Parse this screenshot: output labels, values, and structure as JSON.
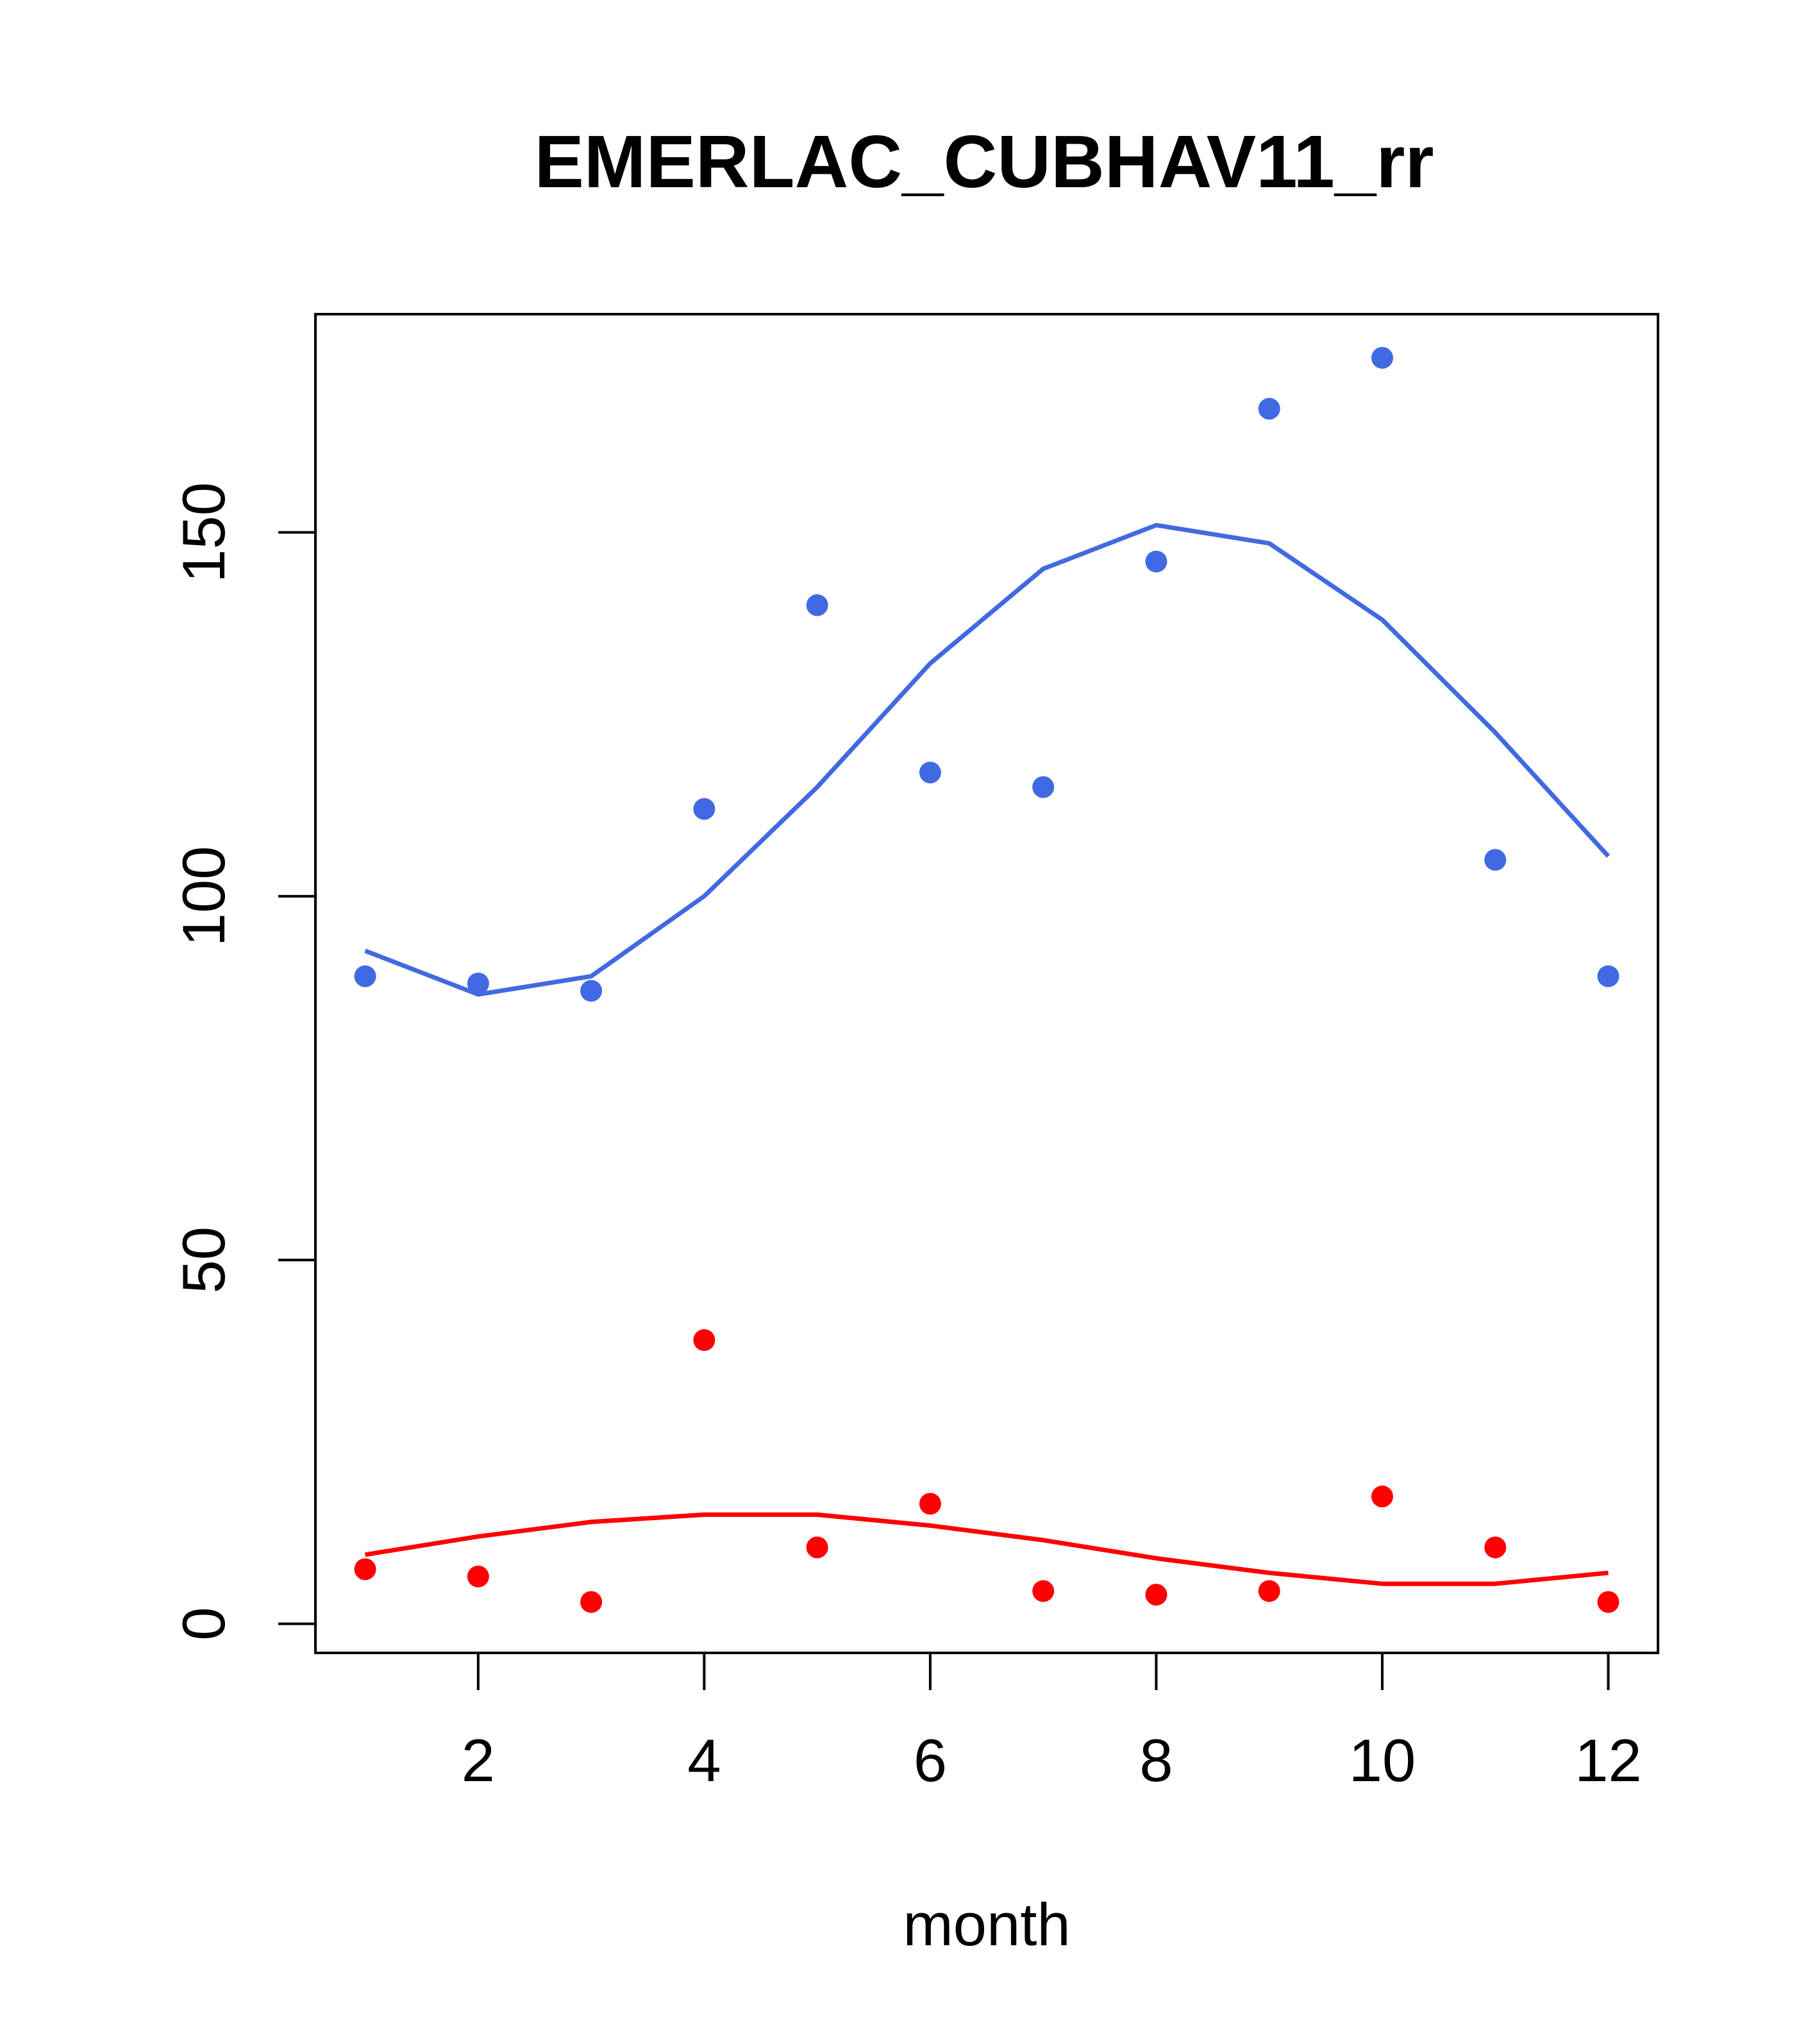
{
  "chart_data": {
    "type": "scatter",
    "title": "EMERLAC_CUBHAV11_rr",
    "xlabel": "month",
    "ylabel": "",
    "xlim": [
      0.56,
      12.44
    ],
    "ylim": [
      -4,
      180
    ],
    "xticks": [
      2,
      4,
      6,
      8,
      10,
      12
    ],
    "yticks": [
      0,
      50,
      100,
      150
    ],
    "grid": false,
    "legend": "none",
    "x": [
      1,
      2,
      3,
      4,
      5,
      6,
      7,
      8,
      9,
      10,
      11,
      12
    ],
    "series": [
      {
        "color": "#4169E1",
        "points": [
          89,
          88,
          87,
          112,
          140,
          117,
          115,
          146,
          167,
          174,
          105,
          89
        ],
        "line": [
          92.5,
          86.5,
          89,
          100,
          115,
          132,
          145,
          151,
          148.5,
          138,
          122.5,
          105.5
        ]
      },
      {
        "color": "#FF0000",
        "points": [
          7.5,
          6.5,
          3,
          39,
          10.5,
          16.5,
          4.5,
          4,
          4.5,
          17.5,
          10.5,
          3
        ],
        "line": [
          9.5,
          12,
          14,
          15,
          15,
          13.5,
          11.5,
          9,
          7,
          5.5,
          5.5,
          7
        ]
      }
    ]
  }
}
